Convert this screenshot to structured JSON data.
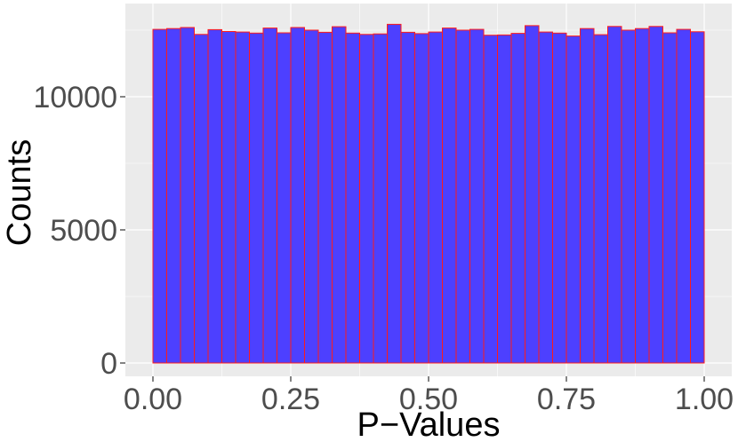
{
  "chart_data": {
    "type": "bar",
    "subtype": "histogram",
    "title": "",
    "xlabel": "P−Values",
    "ylabel": "Counts",
    "xlim": [
      -0.05,
      1.05
    ],
    "ylim": [
      -500,
      13500
    ],
    "x_ticks": [
      {
        "value": 0.0,
        "label": "0.00"
      },
      {
        "value": 0.25,
        "label": "0.25"
      },
      {
        "value": 0.5,
        "label": "0.50"
      },
      {
        "value": 0.75,
        "label": "0.75"
      },
      {
        "value": 1.0,
        "label": "1.00"
      }
    ],
    "y_ticks": [
      {
        "value": 0,
        "label": "0"
      },
      {
        "value": 5000,
        "label": "5000"
      },
      {
        "value": 10000,
        "label": "10000"
      }
    ],
    "bin_range": [
      0,
      1
    ],
    "bin_count": 40,
    "values": [
      12530,
      12560,
      12600,
      12340,
      12520,
      12450,
      12430,
      12390,
      12580,
      12400,
      12600,
      12500,
      12420,
      12630,
      12390,
      12340,
      12360,
      12720,
      12420,
      12370,
      12430,
      12580,
      12500,
      12530,
      12310,
      12320,
      12380,
      12670,
      12430,
      12390,
      12280,
      12560,
      12330,
      12640,
      12500,
      12560,
      12640,
      12400,
      12530,
      12440
    ],
    "grid": true,
    "legend": "none",
    "colors": {
      "bar_fill": "#4d40ff",
      "bar_edge": "#ff1a1a",
      "panel_bg": "#ebebeb",
      "grid_major": "#ffffff",
      "tick_text": "#4d4d4d",
      "axis_title": "#000000"
    }
  }
}
